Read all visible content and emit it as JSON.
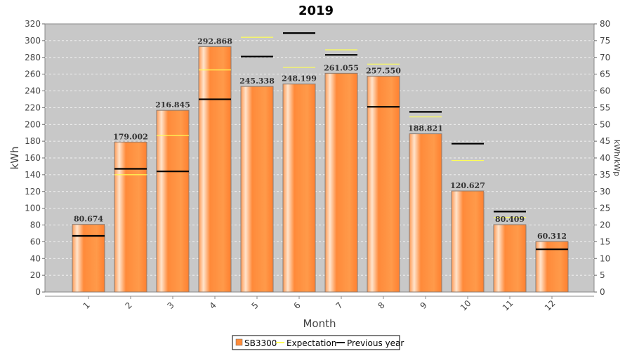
{
  "chart_data": {
    "type": "bar",
    "title": "2019",
    "xlabel": "Month",
    "ylabel": "kWh",
    "y2label": "kWh/kWp",
    "ylim": [
      0,
      320
    ],
    "y2lim": [
      0,
      80
    ],
    "yticks": [
      "0",
      "20",
      "40",
      "60",
      "80",
      "100",
      "120",
      "140",
      "160",
      "180",
      "200",
      "220",
      "240",
      "260",
      "280",
      "300",
      "320"
    ],
    "y2ticks": [
      "0",
      "5",
      "10",
      "15",
      "20",
      "25",
      "30",
      "35",
      "40",
      "45",
      "50",
      "55",
      "60",
      "65",
      "70",
      "75",
      "80"
    ],
    "grid": true,
    "legend_position": "bottom-center",
    "categories": [
      "1",
      "2",
      "3",
      "4",
      "5",
      "6",
      "7",
      "8",
      "9",
      "10",
      "11",
      "12"
    ],
    "series": [
      {
        "name": "SB3300",
        "kind": "bar",
        "color": "#ff8c3a",
        "values": [
          80.674,
          179.002,
          216.845,
          292.868,
          245.338,
          248.199,
          261.055,
          257.55,
          188.821,
          120.627,
          80.409,
          60.312
        ],
        "labels": [
          "80.674",
          "179.002",
          "216.845",
          "292.868",
          "245.338",
          "248.199",
          "261.055",
          "257.550",
          "188.821",
          "120.627",
          "80.409",
          "60.312"
        ]
      },
      {
        "name": "Expectation",
        "kind": "marker",
        "color": "#ffff55",
        "values": [
          null,
          140,
          187,
          265,
          304,
          268,
          289,
          272,
          209,
          157,
          89,
          null
        ]
      },
      {
        "name": "Previous year",
        "kind": "marker",
        "color": "#000000",
        "values": [
          67,
          147,
          144,
          230,
          281,
          309,
          283,
          221,
          215,
          177,
          96,
          51
        ]
      }
    ]
  }
}
